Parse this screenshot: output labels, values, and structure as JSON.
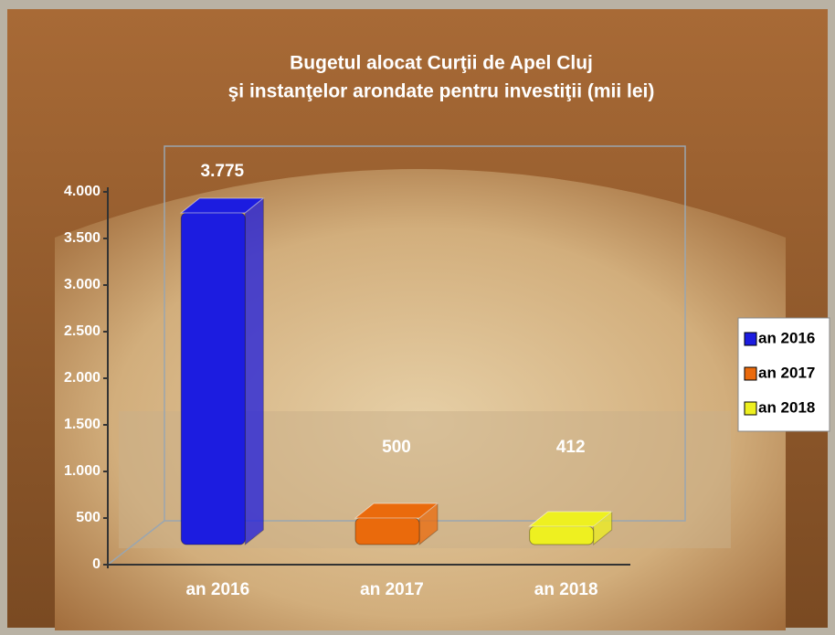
{
  "chart_data": {
    "type": "bar3d",
    "title": [
      "Bugetul alocat Curţii de Apel Cluj",
      "şi instanţelor arondate pentru investiţii  (mii lei)"
    ],
    "categories": [
      "an 2016",
      "an 2017",
      "an 2018"
    ],
    "values": [
      3775,
      500,
      412
    ],
    "value_labels": [
      "3.775",
      "500",
      "412"
    ],
    "colors": [
      "#1c1ce0",
      "#ea6a0c",
      "#eef020"
    ],
    "ylim": [
      0,
      4000
    ],
    "yticks": [
      0,
      500,
      {
        "value": 1000,
        "label": "1.000"
      },
      {
        "value": 1500,
        "label": "1.500"
      },
      {
        "value": 2000,
        "label": "2.000"
      },
      {
        "value": 2500,
        "label": "2.500"
      },
      {
        "value": 3000,
        "label": "3.000"
      },
      {
        "value": 3500,
        "label": "3.500"
      },
      {
        "value": 4000,
        "label": "4.000"
      }
    ],
    "legend": "right"
  }
}
